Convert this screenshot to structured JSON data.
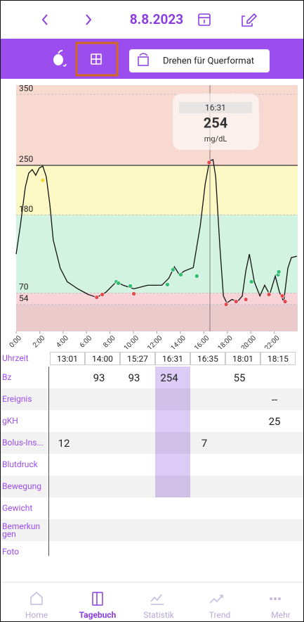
{
  "header": {
    "date": "8.8.2023",
    "button": "Drehen für Querformat"
  },
  "chart_data": {
    "type": "line",
    "color": "#111111",
    "x": [
      0,
      0.36,
      0.78,
      1.07,
      1.37,
      1.67,
      1.97,
      2.27,
      2.57,
      2.87,
      3.16,
      3.76,
      4.36,
      5.25,
      6.15,
      6.87,
      7.64,
      8.54,
      9.13,
      10.03,
      11.22,
      12.42,
      13.01,
      13.49,
      13.91,
      14.33,
      15.1,
      15.7,
      16.12,
      16.48,
      16.78,
      17.01,
      17.37,
      17.67,
      17.96,
      18.39,
      18.87,
      19.28,
      19.58,
      19.88,
      20.3,
      20.78,
      21.19,
      21.61,
      22.09,
      22.45,
      22.81,
      23.16,
      23.46,
      23.94
    ],
    "values": [
      125,
      165,
      219,
      239,
      244,
      236,
      246,
      249,
      234,
      195,
      145,
      105,
      86,
      76,
      68,
      64,
      71,
      86,
      81,
      76,
      81,
      81,
      91,
      107,
      96,
      101,
      106,
      165,
      224,
      256,
      258,
      234,
      135,
      66,
      56,
      61,
      58,
      66,
      101,
      125,
      86,
      66,
      81,
      68,
      94,
      71,
      58,
      105,
      120,
      122
    ],
    "markers": {
      "x": [
        2.27,
        6.87,
        7.34,
        8.54,
        8.72,
        9.73,
        10.03,
        12.9,
        13.37,
        14.03,
        15.4,
        16.45,
        17.9,
        18.75,
        19.58,
        20.06,
        21.55,
        22.33,
        22.39,
        22.69,
        22.93
      ],
      "values": [
        229,
        64,
        68,
        86,
        84,
        80,
        69,
        82,
        103,
        96,
        94,
        254,
        54,
        58,
        61,
        86,
        68,
        96,
        100,
        66,
        58
      ],
      "colors": [
        "#f2dd2c",
        "#e5484d",
        "#e5484d",
        "#2fbf71",
        "#2fbf71",
        "#2fbf71",
        "#e5484d",
        "#2fbf71",
        "#2fbf71",
        "#2fbf71",
        "#2fbf71",
        "#e5484d",
        "#e5484d",
        "#e5484d",
        "#e5484d",
        "#2fbf71",
        "#e5484d",
        "#2fbf71",
        "#2fbf71",
        "#e5484d",
        "#e5484d"
      ]
    },
    "ylim": [
      16,
      363
    ],
    "yticks": [
      350,
      250,
      180,
      70,
      54
    ],
    "xlim": [
      0,
      24
    ],
    "xticks": [
      {
        "value": 0,
        "label": "0:00"
      },
      {
        "value": 2,
        "label": "2:00"
      },
      {
        "value": 4,
        "label": "4:00"
      },
      {
        "value": 6,
        "label": "6:00"
      },
      {
        "value": 8,
        "label": "8:00"
      },
      {
        "value": 10,
        "label": "10:00"
      },
      {
        "value": 12,
        "label": "12:00"
      },
      {
        "value": 14,
        "label": "14:00"
      },
      {
        "value": 16,
        "label": "16:00"
      },
      {
        "value": 18,
        "label": "18:00"
      },
      {
        "value": 20,
        "label": "20:00"
      },
      {
        "value": 22,
        "label": "22:00"
      }
    ],
    "bands": [
      {
        "from": 250,
        "to": 363,
        "color": "#f8d9d0"
      },
      {
        "from": 180,
        "to": 250,
        "color": "#fbf8c4"
      },
      {
        "from": 70,
        "to": 180,
        "color": "#d2f2e2"
      },
      {
        "from": 54,
        "to": 70,
        "color": "#f8d4d9"
      },
      {
        "from": 16,
        "to": 54,
        "color": "#ebcacc"
      }
    ],
    "tooltip": {
      "time": "16:31",
      "value": 254,
      "unit": "mg/dL",
      "x": 16.52
    }
  },
  "table": {
    "header": "Uhrzeit",
    "columns": [
      "13:01",
      "14:00",
      "15:27",
      "16:31",
      "16:35",
      "18:01",
      "18:15"
    ],
    "selected": 3,
    "rows": [
      {
        "label": "Bz",
        "cells": [
          null,
          93,
          93,
          254,
          null,
          55,
          null
        ]
      },
      {
        "label": "Ereignis",
        "cells": [
          null,
          null,
          null,
          null,
          null,
          null,
          "--"
        ]
      },
      {
        "label": "gKH",
        "cells": [
          null,
          null,
          null,
          null,
          null,
          null,
          25
        ]
      },
      {
        "label": "Bolus-Ins...",
        "cells": [
          12,
          null,
          null,
          null,
          7,
          null,
          null
        ]
      },
      {
        "label": "Blutdruck",
        "cells": [
          null,
          null,
          null,
          null,
          null,
          null,
          null
        ]
      },
      {
        "label": "Bewegung",
        "cells": [
          null,
          null,
          null,
          null,
          null,
          null,
          null
        ]
      },
      {
        "label": "Gewicht",
        "cells": [
          null,
          null,
          null,
          null,
          null,
          null,
          null
        ]
      },
      {
        "label": "Bemerkun gen",
        "cells": [
          null,
          null,
          null,
          null,
          null,
          null,
          null
        ]
      },
      {
        "label": "Foto",
        "cells": [
          null,
          null,
          null,
          null,
          null,
          null,
          null
        ]
      }
    ]
  },
  "nav": [
    "Home",
    "Tagebuch",
    "Statistik",
    "Trend",
    "Mehr"
  ],
  "nav_active": 1
}
